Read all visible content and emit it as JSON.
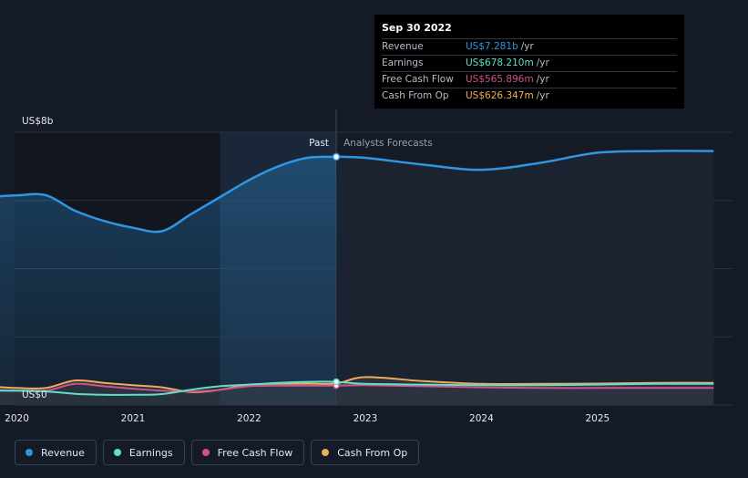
{
  "colors": {
    "revenue": "#2f96e4",
    "earnings": "#5ee0c9",
    "fcf": "#d0528c",
    "cfo": "#f0ab5a",
    "background": "#151b26"
  },
  "tooltip": {
    "date": "Sep 30 2022",
    "rows": [
      {
        "label": "Revenue",
        "value": "US$7.281b",
        "unit": "/yr",
        "color": "#2f96e4"
      },
      {
        "label": "Earnings",
        "value": "US$678.210m",
        "unit": "/yr",
        "color": "#5ee0c9"
      },
      {
        "label": "Free Cash Flow",
        "value": "US$565.896m",
        "unit": "/yr",
        "color": "#d0528c"
      },
      {
        "label": "Cash From Op",
        "value": "US$626.347m",
        "unit": "/yr",
        "color": "#f0ab5a"
      }
    ]
  },
  "legend": [
    {
      "label": "Revenue",
      "color": "#2f96e4",
      "icon": "revenue-dot-icon"
    },
    {
      "label": "Earnings",
      "color": "#5ee0c9",
      "icon": "earnings-dot-icon"
    },
    {
      "label": "Free Cash Flow",
      "color": "#d0528c",
      "icon": "fcf-dot-icon"
    },
    {
      "label": "Cash From Op",
      "color": "#f0ab5a",
      "icon": "cfo-dot-icon"
    }
  ],
  "chart_data": {
    "type": "line",
    "ylabel_top": "US$8b",
    "ylabel_bottom": "US$0",
    "ylim": [
      0,
      8
    ],
    "xlim": [
      2019.98,
      2026.17
    ],
    "y_gridlines": [
      0,
      2,
      4,
      6,
      8
    ],
    "x_ticks": [
      "2020",
      "2021",
      "2022",
      "2023",
      "2024",
      "2025"
    ],
    "x_tick_values": [
      2020,
      2021,
      2022,
      2023,
      2024,
      2025
    ],
    "past_label": "Past",
    "forecast_label": "Analysts Forecasts",
    "divider_x": 2022.75,
    "past_shade_start": 2021.75,
    "series": [
      {
        "name": "Revenue",
        "key": "revenue",
        "x": [
          2019.75,
          2020,
          2020.25,
          2020.5,
          2020.75,
          2021,
          2021.25,
          2021.5,
          2021.75,
          2022,
          2022.25,
          2022.5,
          2022.75,
          2023,
          2023.5,
          2024,
          2024.5,
          2025,
          2025.5,
          2026
        ],
        "y": [
          6.1,
          6.15,
          6.15,
          5.7,
          5.4,
          5.2,
          5.1,
          5.6,
          6.1,
          6.6,
          7.0,
          7.25,
          7.28,
          7.25,
          7.05,
          6.9,
          7.1,
          7.4,
          7.45,
          7.45
        ]
      },
      {
        "name": "Earnings",
        "key": "earnings",
        "x": [
          2019.75,
          2020,
          2020.25,
          2020.5,
          2020.75,
          2021,
          2021.25,
          2021.5,
          2021.75,
          2022,
          2022.25,
          2022.5,
          2022.75,
          2023,
          2023.5,
          2024,
          2024.5,
          2025,
          2025.5,
          2026
        ],
        "y": [
          0.42,
          0.42,
          0.4,
          0.33,
          0.3,
          0.3,
          0.32,
          0.45,
          0.55,
          0.6,
          0.65,
          0.68,
          0.68,
          0.62,
          0.6,
          0.58,
          0.58,
          0.6,
          0.62,
          0.62
        ]
      },
      {
        "name": "Free Cash Flow",
        "key": "fcf",
        "x": [
          2019.75,
          2020,
          2020.25,
          2020.5,
          2020.75,
          2021,
          2021.25,
          2021.5,
          2021.75,
          2022,
          2022.25,
          2022.5,
          2022.75,
          2023,
          2023.5,
          2024,
          2024.5,
          2025,
          2025.5,
          2026
        ],
        "y": [
          0.45,
          0.42,
          0.42,
          0.62,
          0.55,
          0.48,
          0.42,
          0.4,
          0.45,
          0.55,
          0.57,
          0.57,
          0.57,
          0.58,
          0.55,
          0.52,
          0.5,
          0.5,
          0.5,
          0.5
        ]
      },
      {
        "name": "Cash From Op",
        "key": "cfo",
        "x": [
          2019.75,
          2020,
          2020.25,
          2020.5,
          2020.75,
          2021,
          2021.25,
          2021.5,
          2021.75,
          2022,
          2022.25,
          2022.5,
          2022.75,
          2023,
          2023.5,
          2024,
          2024.5,
          2025,
          2025.5,
          2026
        ],
        "y": [
          0.55,
          0.5,
          0.5,
          0.72,
          0.65,
          0.58,
          0.52,
          0.38,
          0.45,
          0.6,
          0.62,
          0.63,
          0.63,
          0.82,
          0.7,
          0.62,
          0.62,
          0.63,
          0.65,
          0.65
        ]
      }
    ]
  }
}
